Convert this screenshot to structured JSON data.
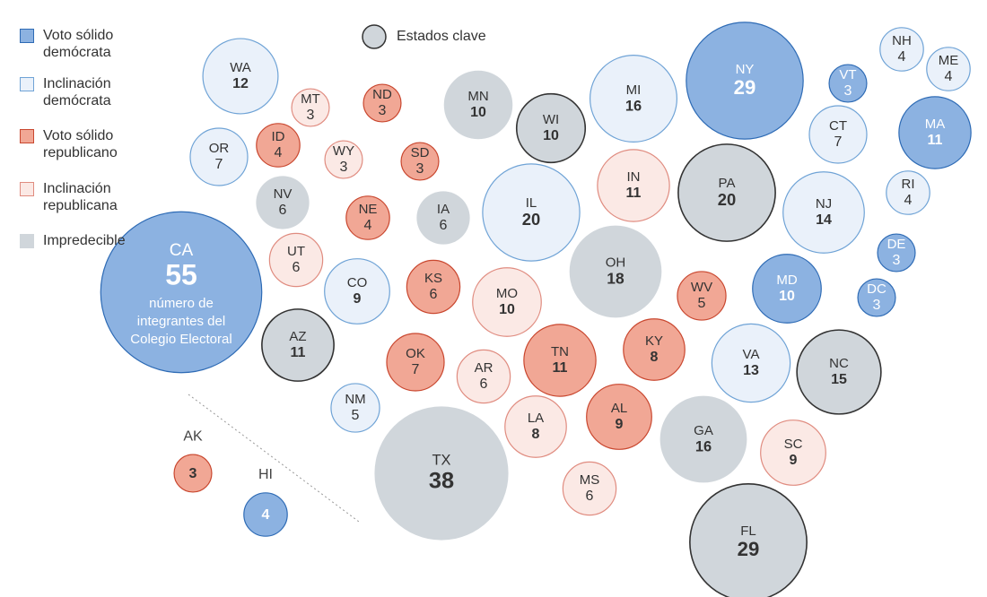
{
  "legend_key": {
    "label": "Estados clave"
  },
  "annotation": "número de integrantes del Colegio Electoral",
  "groups": [
    {
      "label": "Voto sólido demócrata",
      "color": "#8cb2e1",
      "stroke": "#2e6bb5",
      "states": [
        {
          "label": "CA",
          "value": 55
        },
        {
          "label": "NY",
          "value": 29
        },
        {
          "label": "VT",
          "value": 3
        },
        {
          "label": "MA",
          "value": 11
        },
        {
          "label": "MD",
          "value": 10
        },
        {
          "label": "DE",
          "value": 3
        },
        {
          "label": "DC",
          "value": 3
        },
        {
          "label": "HI",
          "value": 4
        }
      ]
    },
    {
      "label": "Inclinación demócrata",
      "color": "#eaf1fa",
      "stroke": "#6fa3d6",
      "states": [
        {
          "label": "WA",
          "value": 12
        },
        {
          "label": "OR",
          "value": 7
        },
        {
          "label": "CO",
          "value": 9
        },
        {
          "label": "NM",
          "value": 5
        },
        {
          "label": "IL",
          "value": 20
        },
        {
          "label": "MI",
          "value": 16
        },
        {
          "label": "VA",
          "value": 13
        },
        {
          "label": "NJ",
          "value": 14
        },
        {
          "label": "CT",
          "value": 7
        },
        {
          "label": "NH",
          "value": 4
        },
        {
          "label": "ME",
          "value": 4
        },
        {
          "label": "RI",
          "value": 4
        }
      ]
    },
    {
      "label": "Voto sólido republicano",
      "color": "#f1a795",
      "stroke": "#c9472f",
      "states": [
        {
          "label": "ID",
          "value": 4
        },
        {
          "label": "ND",
          "value": 3
        },
        {
          "label": "SD",
          "value": 3
        },
        {
          "label": "NE",
          "value": 4
        },
        {
          "label": "KS",
          "value": 6
        },
        {
          "label": "OK",
          "value": 7
        },
        {
          "label": "TN",
          "value": 11
        },
        {
          "label": "KY",
          "value": 8
        },
        {
          "label": "AL",
          "value": 9
        },
        {
          "label": "WV",
          "value": 5
        },
        {
          "label": "AK",
          "value": 3
        }
      ]
    },
    {
      "label": "Inclinación republicana",
      "color": "#fbe9e5",
      "stroke": "#e08c80",
      "states": [
        {
          "label": "MT",
          "value": 3
        },
        {
          "label": "WY",
          "value": 3
        },
        {
          "label": "UT",
          "value": 6
        },
        {
          "label": "MO",
          "value": 10
        },
        {
          "label": "AR",
          "value": 6
        },
        {
          "label": "LA",
          "value": 8
        },
        {
          "label": "MS",
          "value": 6
        },
        {
          "label": "IN",
          "value": 11
        },
        {
          "label": "SC",
          "value": 9
        }
      ]
    },
    {
      "label": "Impredecible",
      "color": "#d0d6db",
      "stroke": "none",
      "states": [
        {
          "label": "NV",
          "value": 6
        },
        {
          "label": "AZ",
          "value": 11,
          "key": true
        },
        {
          "label": "MN",
          "value": 10
        },
        {
          "label": "IA",
          "value": 6
        },
        {
          "label": "TX",
          "value": 38
        },
        {
          "label": "WI",
          "value": 10,
          "key": true
        },
        {
          "label": "OH",
          "value": 18
        },
        {
          "label": "GA",
          "value": 16
        },
        {
          "label": "FL",
          "value": 29,
          "key": true
        },
        {
          "label": "PA",
          "value": 20,
          "key": true
        },
        {
          "label": "NC",
          "value": 15,
          "key": true
        }
      ]
    }
  ]
}
